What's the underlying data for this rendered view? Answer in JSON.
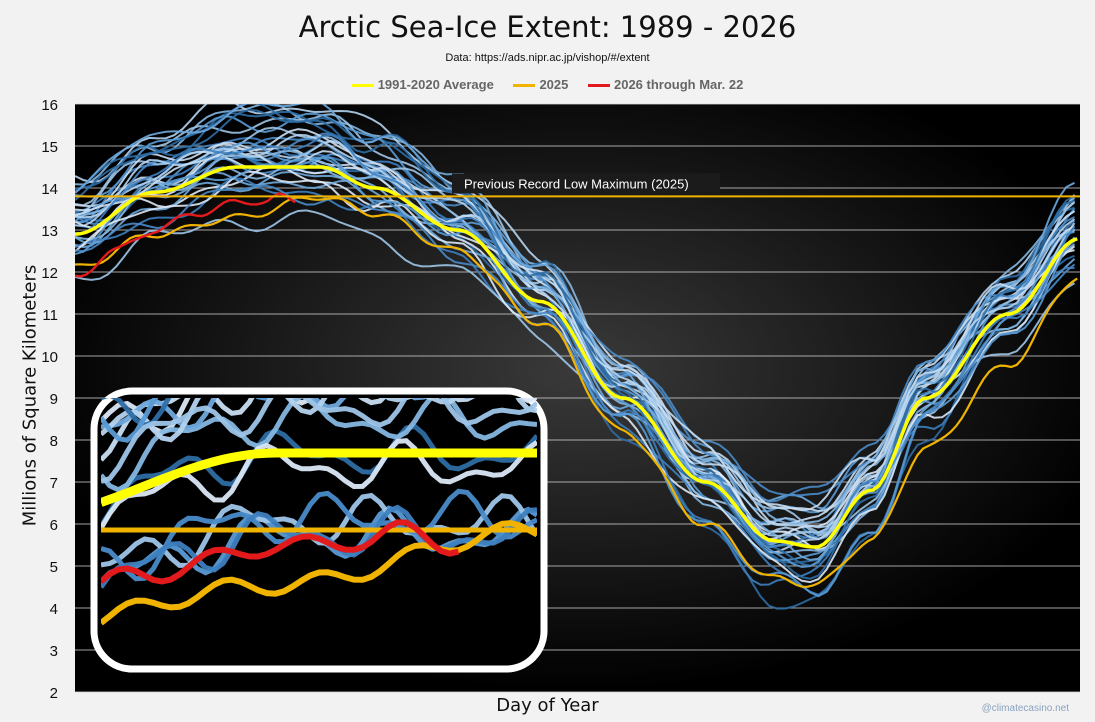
{
  "chart_data": {
    "type": "line",
    "title": "Arctic Sea-Ice Extent: 1989 - 2026",
    "subtitle": "Data: https://ads.nipr.ac.jp/vishop/#/extent",
    "xlabel": "Day of Year",
    "ylabel": "Millions of Square Kilometers",
    "ylim": [
      2,
      16
    ],
    "yticks": [
      "2",
      "3",
      "4",
      "5",
      "6",
      "7",
      "8",
      "9",
      "10",
      "11",
      "12",
      "13",
      "14",
      "15",
      "16"
    ],
    "xlim": [
      1,
      366
    ],
    "grid": true,
    "legend_position": "top-center",
    "reference_line": {
      "value": 13.8,
      "label": "Previous Record Low Maximum (2025)",
      "color": "#f0b400"
    },
    "series": [
      {
        "name": "1991-2020 Average",
        "color": "#ffff00",
        "x": [
          1,
          30,
          60,
          90,
          110,
          140,
          170,
          200,
          230,
          255,
          270,
          290,
          310,
          340,
          366
        ],
        "values": [
          12.9,
          13.9,
          14.5,
          14.5,
          14.0,
          13.0,
          11.3,
          9.0,
          7.0,
          5.6,
          5.45,
          6.8,
          9.0,
          11.0,
          12.8
        ]
      },
      {
        "name": "2025",
        "color": "#f0b400",
        "x": [
          1,
          30,
          60,
          90,
          110,
          140,
          170,
          200,
          230,
          255,
          270,
          290,
          310,
          340,
          366
        ],
        "values": [
          12.1,
          12.9,
          13.3,
          13.8,
          13.4,
          12.5,
          10.8,
          8.2,
          6.0,
          4.7,
          4.55,
          5.6,
          7.8,
          9.8,
          11.9
        ]
      },
      {
        "name": "2026 through Mar. 22",
        "color": "#e31a1c",
        "x": [
          1,
          15,
          30,
          45,
          60,
          70,
          75,
          81
        ],
        "values": [
          11.85,
          12.5,
          13.0,
          13.4,
          13.65,
          13.7,
          13.8,
          13.65
        ]
      }
    ]
  },
  "footer": {
    "credit": "@climatecasino.net"
  }
}
